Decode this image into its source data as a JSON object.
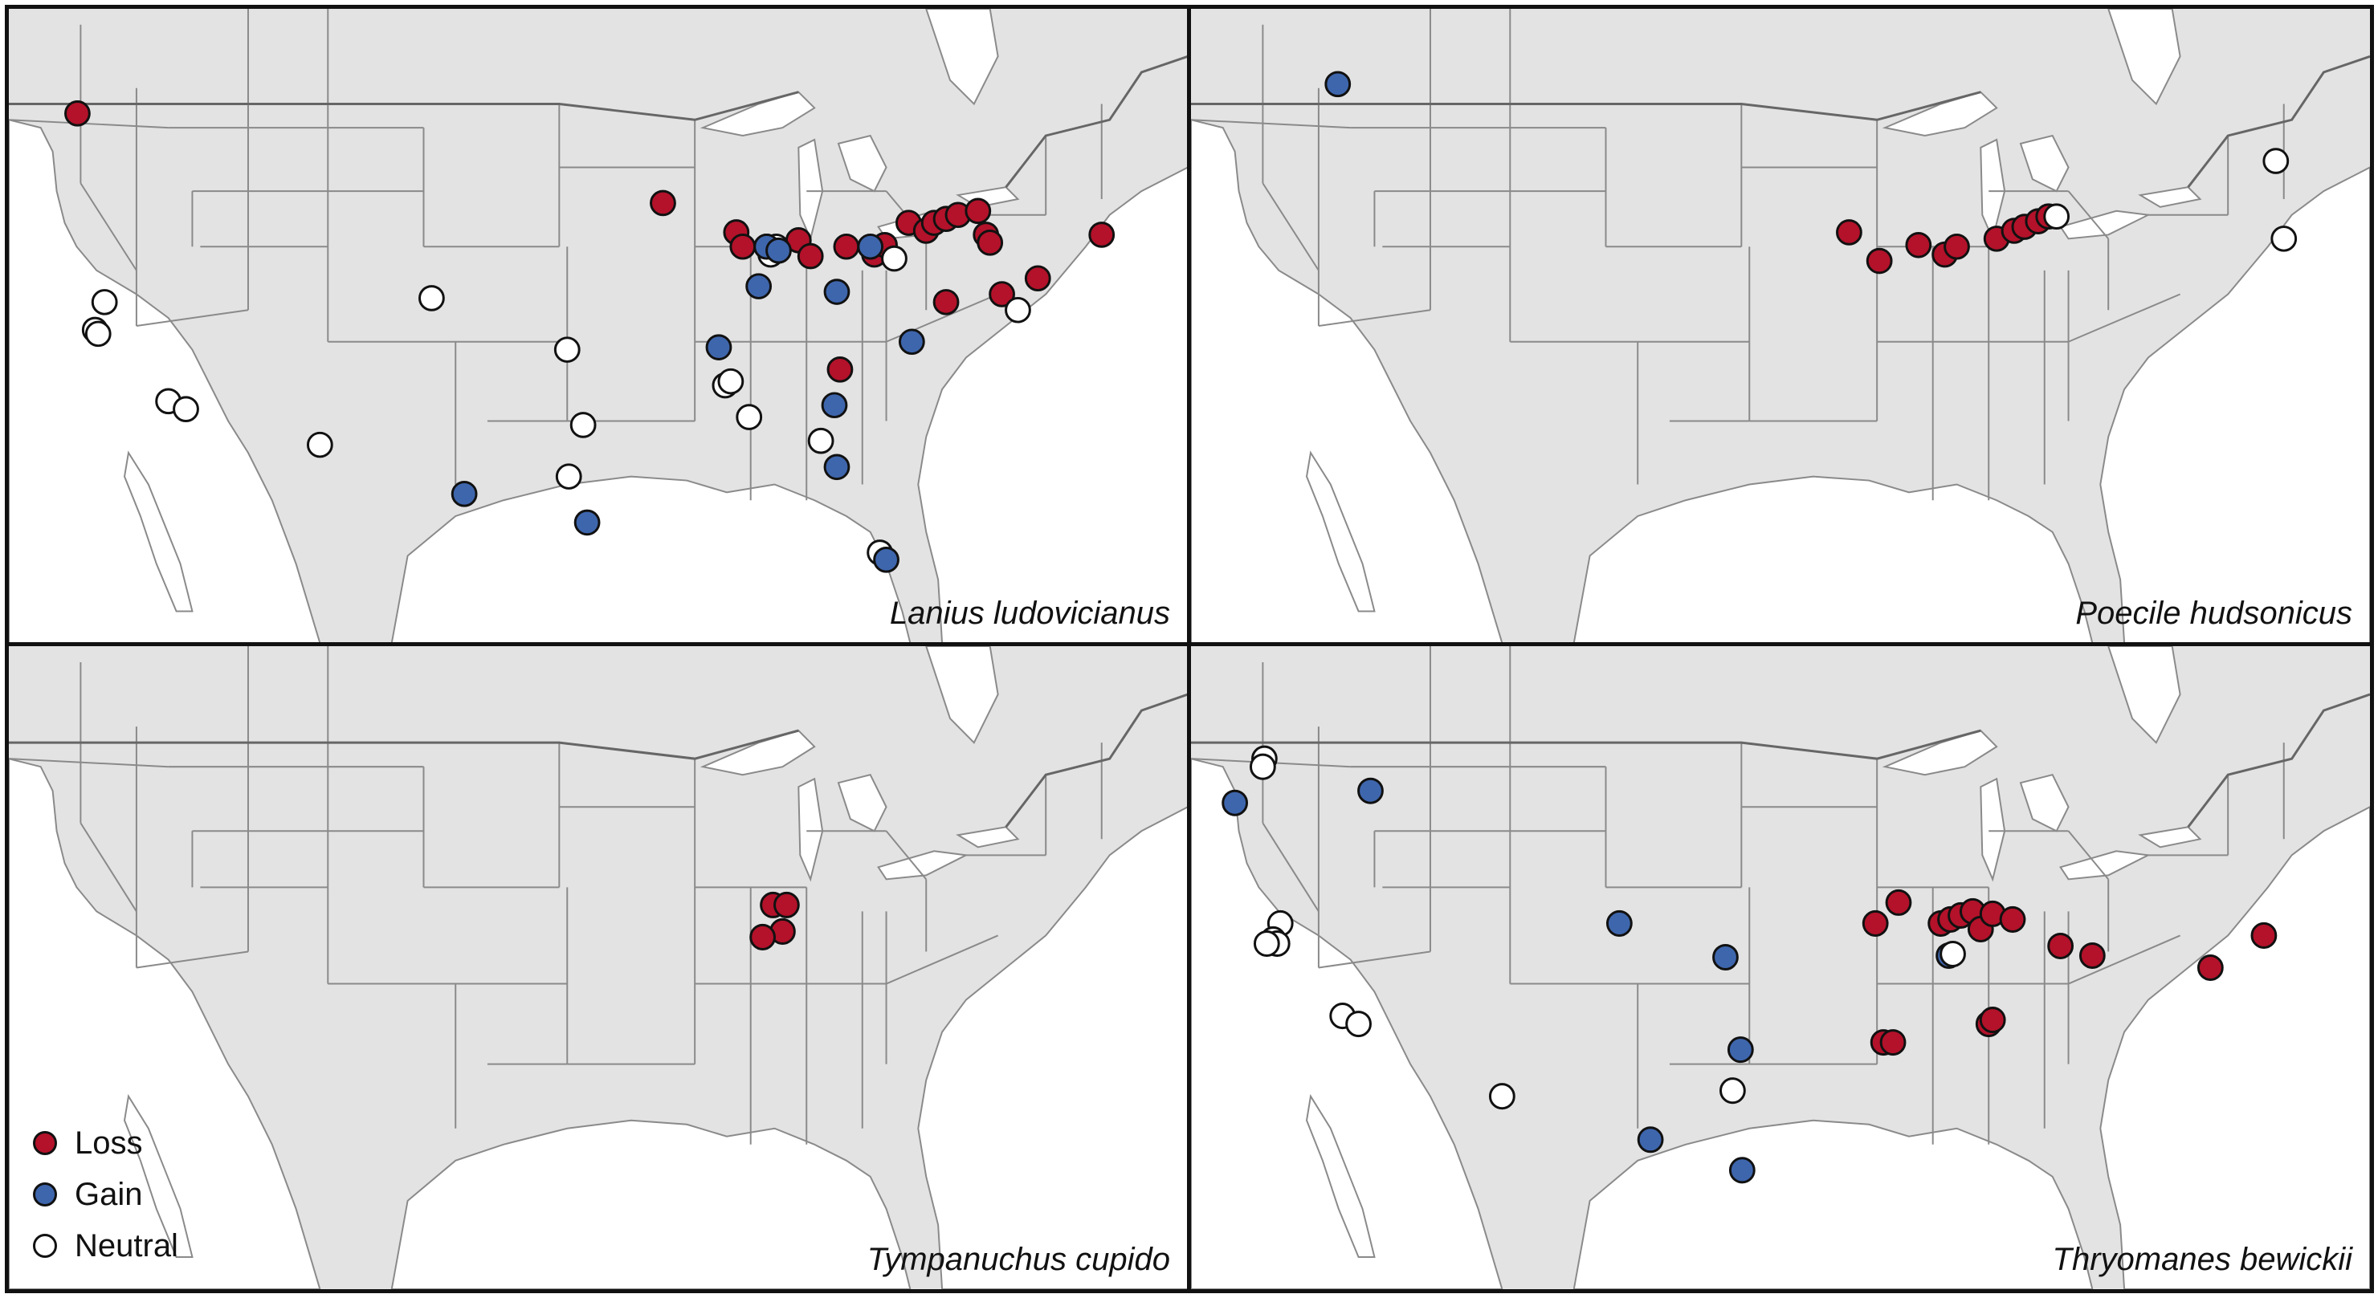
{
  "colors": {
    "loss": "#b3122a",
    "gain": "#3e66ad",
    "neutral": "#ffffff",
    "land": "#e3e3e3",
    "water": "#ffffff",
    "border": "#8a8a8a",
    "frame": "#111111"
  },
  "legend": {
    "loss": "Loss",
    "gain": "Gain",
    "neutral": "Neutral"
  },
  "panels": [
    {
      "species": "Lanius ludovicianus"
    },
    {
      "species": "Poecile hudsonicus"
    },
    {
      "species": "Tympanuchus cupido"
    },
    {
      "species": "Thryomanes bewickii"
    }
  ]
}
